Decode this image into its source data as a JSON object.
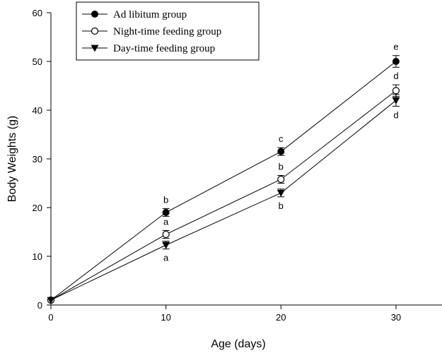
{
  "chart_data": {
    "type": "line",
    "xlabel": "Age (days)",
    "ylabel": "Body Weights (g)",
    "xlim": [
      0,
      34
    ],
    "ylim": [
      0,
      60
    ],
    "x_ticks": [
      0,
      10,
      20,
      30
    ],
    "y_ticks": [
      0,
      10,
      20,
      30,
      40,
      50,
      60
    ],
    "legend_position": "top-left",
    "grid": false,
    "series": [
      {
        "name": "Ad libitum group",
        "marker": "filled-circle",
        "x": [
          0,
          10,
          20,
          30
        ],
        "y": [
          1,
          19,
          31.5,
          50
        ],
        "err": [
          0,
          0.8,
          0.8,
          1.2
        ],
        "letters": [
          "",
          "b",
          "c",
          "e"
        ],
        "letter_pos": [
          "",
          "above",
          "above",
          "above"
        ]
      },
      {
        "name": "Night-time feeding group",
        "marker": "open-circle",
        "x": [
          0,
          10,
          20,
          30
        ],
        "y": [
          1,
          14.5,
          25.8,
          44
        ],
        "err": [
          0,
          0.8,
          0.8,
          1.2
        ],
        "letters": [
          "",
          "a",
          "b",
          "d"
        ],
        "letter_pos": [
          "",
          "above",
          "above",
          "above"
        ]
      },
      {
        "name": "Day-time feeding group",
        "marker": "filled-triangle-down",
        "x": [
          0,
          10,
          20,
          30
        ],
        "y": [
          1,
          12.3,
          23,
          42
        ],
        "err": [
          0,
          0.8,
          0.8,
          1.2
        ],
        "letters": [
          "",
          "a",
          "b",
          "d"
        ],
        "letter_pos": [
          "",
          "below",
          "below",
          "below"
        ]
      }
    ]
  }
}
